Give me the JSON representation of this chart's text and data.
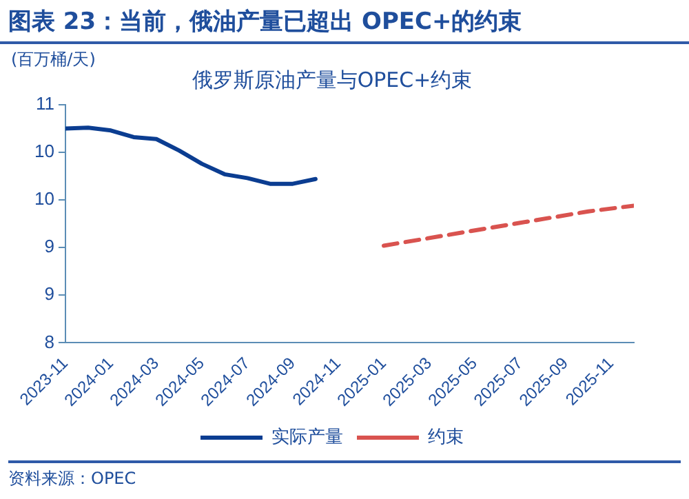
{
  "chart_data": {
    "type": "line",
    "title": "图表 23：当前，俄油产量已超出 OPEC+的约束",
    "subtitle": "俄罗斯原油产量与OPEC+约束",
    "ylabel": "(百万桶/天)",
    "annotations": [
      "资料来源：OPEC"
    ],
    "series": [
      {
        "name": "实际产量",
        "color": "#0b3d91",
        "line_style": "solid",
        "x": [
          "2023-11",
          "2023-12",
          "2024-01",
          "2024-02",
          "2024-03",
          "2024-04",
          "2024-05",
          "2024-06",
          "2024-07",
          "2024-08",
          "2024-09",
          "2024-10"
        ],
        "values": [
          10.25,
          10.26,
          10.23,
          10.16,
          10.14,
          10.02,
          9.88,
          9.77,
          9.73,
          9.67,
          9.67,
          9.72
        ]
      },
      {
        "name": "约束",
        "color": "#d9534f",
        "line_style": "dashed",
        "x": [
          "2025-01",
          "2025-04",
          "2025-07",
          "2025-10",
          "2025-12"
        ],
        "values": [
          9.02,
          9.14,
          9.26,
          9.38,
          9.44
        ]
      }
    ],
    "xlim": [
      "2023-11",
      "2025-12"
    ],
    "xticks": [
      "2023-11",
      "2024-01",
      "2024-03",
      "2024-05",
      "2024-07",
      "2024-09",
      "2024-11",
      "2025-01",
      "2025-03",
      "2025-05",
      "2025-07",
      "2025-09",
      "2025-11"
    ],
    "ylim": [
      8,
      10.5
    ],
    "yticks": [
      8,
      {
        "value": 8.5,
        "label": "9"
      },
      9,
      {
        "value": 9.5,
        "label": "10"
      },
      10,
      {
        "value": 10.5,
        "label": "11"
      }
    ],
    "grid": false,
    "legend": "bottom",
    "marker": "none"
  }
}
